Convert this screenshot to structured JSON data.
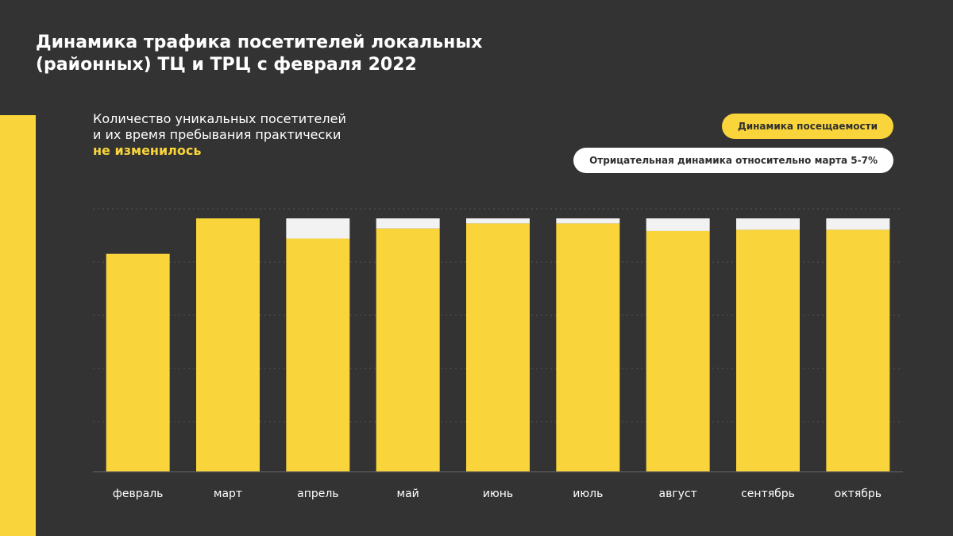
{
  "title": {
    "line1": "Динамика трафика посетителей локальных",
    "line2": "(районных) ТЦ и ТРЦ с февраля 2022"
  },
  "subtitle": {
    "line1": "Количество уникальных посетителей",
    "line2": "и их время пребывания практически",
    "accent": "не изменилось"
  },
  "legend": {
    "visits": "Динамика посещаемости",
    "negative": "Отрицательная динамика относительно марта 5-7%"
  },
  "colors": {
    "accent": "#f9d43b",
    "gap": "#f2f2f2",
    "background": "#333333"
  },
  "chart_data": {
    "type": "bar",
    "categories": [
      "февраль",
      "март",
      "апрель",
      "май",
      "июнь",
      "июль",
      "август",
      "сентябрь",
      "октябрь"
    ],
    "series": [
      {
        "values": [
          86,
          100,
          92,
          96,
          98,
          98,
          95,
          95.5,
          95.5
        ],
        "color": "#f9d43b"
      },
      {
        "values": [
          0,
          0,
          8,
          4,
          2,
          2,
          5,
          4.5,
          4.5
        ],
        "color": "#f2f2f2"
      }
    ],
    "stacked": true,
    "ylim": [
      0,
      100
    ],
    "grid": true,
    "title": "",
    "xlabel": "",
    "ylabel": ""
  }
}
